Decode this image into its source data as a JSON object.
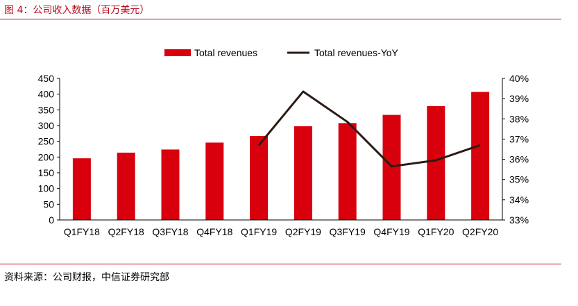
{
  "figure": {
    "title": "图 4：公司收入数据（百万美元）",
    "source": "资料来源：公司财报，中信证券研究部",
    "accent_color": "#b8071b"
  },
  "chart_data": {
    "type": "bar",
    "categories": [
      "Q1FY18",
      "Q2FY18",
      "Q3FY18",
      "Q4FY18",
      "Q1FY19",
      "Q2FY19",
      "Q3FY19",
      "Q4FY19",
      "Q1FY20",
      "Q2FY20"
    ],
    "series": [
      {
        "name": "Total revenues",
        "type": "bar",
        "axis": "left",
        "color": "#d9000d",
        "values": [
          196,
          214,
          224,
          246,
          267,
          298,
          308,
          334,
          362,
          407
        ]
      },
      {
        "name": "Total revenues-YoY",
        "type": "line",
        "axis": "right",
        "color": "#2b1a14",
        "values": [
          null,
          null,
          null,
          null,
          36.7,
          39.35,
          37.85,
          35.65,
          35.95,
          36.7
        ]
      }
    ],
    "y_left": {
      "min": 0,
      "max": 450,
      "step": 50,
      "ticks": [
        "0",
        "50",
        "100",
        "150",
        "200",
        "250",
        "300",
        "350",
        "400",
        "450"
      ]
    },
    "y_right": {
      "min": 33,
      "max": 40,
      "step": 1,
      "ticks": [
        "33%",
        "34%",
        "35%",
        "36%",
        "37%",
        "38%",
        "39%",
        "40%"
      ]
    },
    "legend_position": "top",
    "grid": false
  }
}
